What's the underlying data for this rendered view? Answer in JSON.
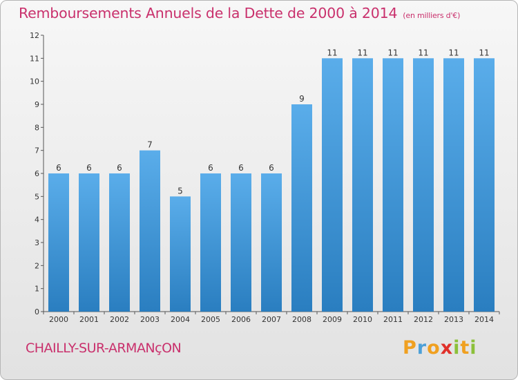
{
  "header": {
    "title": "Remboursements Annuels de la Dette de 2000 à 2014",
    "unit": "(en milliers d'€)"
  },
  "footer": {
    "city": "CHAILLY-SUR-ARMANçON",
    "logo_letters": [
      "P",
      "r",
      "o",
      "x",
      "i",
      "t",
      "i"
    ],
    "logo_colors": [
      "#f0a020",
      "#4da0d8",
      "#f0a020",
      "#e0302a",
      "#8cc03a",
      "#f0a020",
      "#8cc03a"
    ]
  },
  "chart_data": {
    "type": "bar",
    "title": "Remboursements Annuels de la Dette de 2000 à 2014",
    "xlabel": "",
    "ylabel": "",
    "ylim": [
      0,
      12
    ],
    "yticks": [
      0,
      1,
      2,
      3,
      4,
      5,
      6,
      7,
      8,
      9,
      10,
      11,
      12
    ],
    "grid": false,
    "bar_color": "#3a8fd4",
    "categories": [
      "2000",
      "2001",
      "2002",
      "2003",
      "2004",
      "2005",
      "2006",
      "2007",
      "2008",
      "2009",
      "2010",
      "2011",
      "2012",
      "2013",
      "2014"
    ],
    "values": [
      6,
      6,
      6,
      7,
      5,
      6,
      6,
      6,
      9,
      11,
      11,
      11,
      11,
      11,
      11
    ],
    "data_labels": [
      "6",
      "6",
      "6",
      "7",
      "5",
      "6",
      "6",
      "6",
      "9",
      "11",
      "11",
      "11",
      "11",
      "11",
      "11"
    ]
  }
}
